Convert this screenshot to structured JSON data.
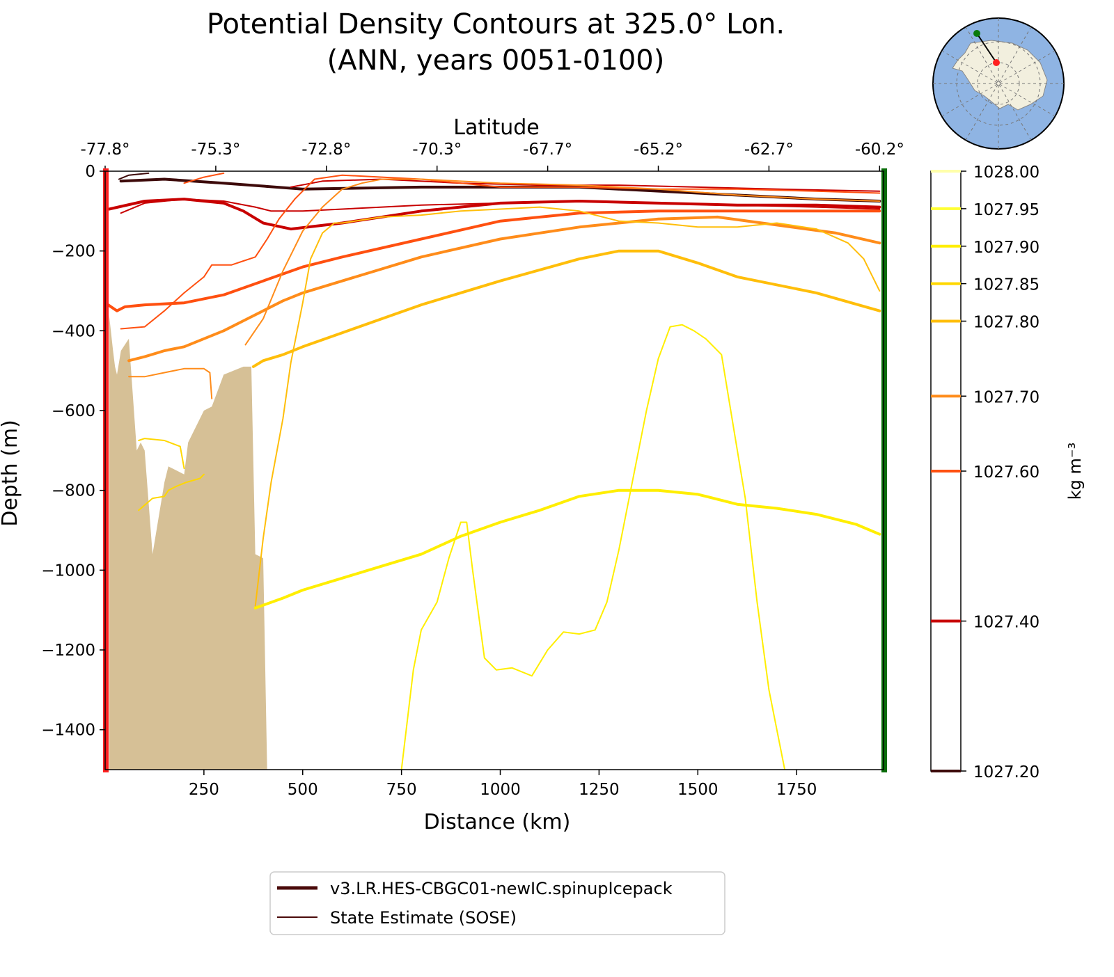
{
  "chart_data": {
    "type": "line",
    "title": [
      "Potential Density Contours at 325.0° Lon.",
      "(ANN, years 0051-0100)"
    ],
    "xlabel": "Distance (km)",
    "ylabel": "Depth (m)",
    "top_xlabel": "Latitude",
    "xlim": [
      0,
      1970
    ],
    "ylim": [
      -1500,
      0
    ],
    "x_ticks": [
      250,
      500,
      750,
      1000,
      1250,
      1500,
      1750
    ],
    "x_tick_labels": [
      "250",
      "500",
      "750",
      "1000",
      "1250",
      "1500",
      "1750"
    ],
    "y_ticks": [
      0,
      -200,
      -400,
      -600,
      -800,
      -1000,
      -1200,
      -1400
    ],
    "y_tick_labels": [
      "0",
      "−200",
      "−400",
      "−600",
      "−800",
      "−1000",
      "−1200",
      "−1400"
    ],
    "top_ticks": [
      0,
      280,
      560,
      840,
      1120,
      1400,
      1680,
      1960
    ],
    "top_tick_labels": [
      "-77.8°",
      "-75.3°",
      "-72.8°",
      "-70.3°",
      "-67.7°",
      "-65.2°",
      "-62.7°",
      "-60.2°"
    ],
    "colorbar": {
      "label": "kg m⁻³",
      "levels": [
        {
          "value": 1027.2,
          "label": "1027.20",
          "color": "#3d0a0a"
        },
        {
          "value": 1027.4,
          "label": "1027.40",
          "color": "#c80000"
        },
        {
          "value": 1027.6,
          "label": "1027.60",
          "color": "#ff5010"
        },
        {
          "value": 1027.7,
          "label": "1027.70",
          "color": "#ff8c1a"
        },
        {
          "value": 1027.8,
          "label": "1027.80",
          "color": "#ffbe0a"
        },
        {
          "value": 1027.85,
          "label": "1027.85",
          "color": "#ffd700"
        },
        {
          "value": 1027.9,
          "label": "1027.90",
          "color": "#ffee00"
        },
        {
          "value": 1027.95,
          "label": "1027.95",
          "color": "#ffff33"
        },
        {
          "value": 1028.0,
          "label": "1028.00",
          "color": "#ffffaa"
        }
      ]
    },
    "series": [
      {
        "level": 1027.2,
        "source": "model",
        "x": [
          40,
          150,
          300,
          500,
          800,
          1200,
          1500,
          1800,
          1960
        ],
        "y": [
          -25,
          -20,
          -30,
          -45,
          -40,
          -40,
          -55,
          -70,
          -75
        ]
      },
      {
        "level": 1027.2,
        "source": "sose",
        "x": [
          35,
          60,
          110
        ],
        "y": [
          -20,
          -10,
          -5
        ]
      },
      {
        "level": 1027.4,
        "source": "model",
        "x": [
          10,
          100,
          200,
          300,
          350,
          400,
          470,
          600,
          800,
          1000,
          1200,
          1400,
          1600,
          1800,
          1960
        ],
        "y": [
          -95,
          -75,
          -70,
          -80,
          -100,
          -130,
          -145,
          -130,
          -100,
          -80,
          -75,
          -80,
          -85,
          -85,
          -90
        ]
      },
      {
        "level": 1027.4,
        "source": "sose",
        "x": [
          40,
          100,
          200,
          300,
          380,
          420,
          500,
          600,
          700,
          800,
          1000,
          1200,
          1400,
          1600,
          1800,
          1960
        ],
        "y": [
          -105,
          -80,
          -70,
          -75,
          -90,
          -100,
          -100,
          -95,
          -90,
          -85,
          -80,
          -75,
          -80,
          -85,
          -90,
          -95
        ]
      },
      {
        "level": 1027.4,
        "source": "sose",
        "x": [
          470,
          550,
          700,
          900,
          1100,
          1300,
          1500,
          1700,
          1960
        ],
        "y": [
          -40,
          -25,
          -20,
          -30,
          -35,
          -35,
          -40,
          -45,
          -50
        ]
      },
      {
        "level": 1027.6,
        "source": "model",
        "x": [
          0,
          30,
          50,
          100,
          200,
          300,
          400,
          500,
          600,
          800,
          1000,
          1200,
          1400,
          1600,
          1800,
          1960
        ],
        "y": [
          -330,
          -350,
          -340,
          -335,
          -330,
          -310,
          -275,
          -240,
          -215,
          -170,
          -125,
          -105,
          -100,
          -100,
          -100,
          -100
        ]
      },
      {
        "level": 1027.6,
        "source": "sose",
        "x": [
          40,
          100,
          150,
          200,
          250,
          270,
          320,
          350,
          380,
          410,
          440,
          480,
          530,
          600,
          800,
          1000,
          1200,
          1400,
          1600,
          1800,
          1960
        ],
        "y": [
          -395,
          -390,
          -350,
          -305,
          -265,
          -235,
          -235,
          -225,
          -215,
          -170,
          -120,
          -70,
          -20,
          -10,
          -20,
          -40,
          -40,
          -45,
          -45,
          -50,
          -55
        ]
      },
      {
        "level": 1027.6,
        "source": "sose",
        "x": [
          200,
          250,
          300
        ],
        "y": [
          -30,
          -15,
          -5
        ]
      },
      {
        "level": 1027.7,
        "source": "model",
        "x": [
          60,
          100,
          150,
          200,
          250,
          300,
          350,
          400,
          450,
          500,
          600,
          700,
          800,
          1000,
          1200,
          1400,
          1550,
          1700,
          1850,
          1960
        ],
        "y": [
          -475,
          -465,
          -450,
          -440,
          -420,
          -400,
          -375,
          -350,
          -325,
          -305,
          -275,
          -245,
          -215,
          -170,
          -140,
          -120,
          -115,
          -135,
          -155,
          -180
        ]
      },
      {
        "level": 1027.7,
        "source": "sose",
        "x": [
          355,
          400,
          450,
          500,
          550,
          600,
          650,
          700,
          800,
          1000,
          1200,
          1400,
          1600,
          1800,
          1960
        ],
        "y": [
          -435,
          -370,
          -250,
          -150,
          -90,
          -45,
          -30,
          -20,
          -20,
          -30,
          -35,
          -45,
          -60,
          -70,
          -75
        ]
      },
      {
        "level": 1027.7,
        "source": "sose",
        "x": [
          60,
          100,
          150,
          200,
          250,
          265,
          270
        ],
        "y": [
          -515,
          -515,
          -505,
          -495,
          -495,
          -505,
          -570
        ]
      },
      {
        "level": 1027.8,
        "source": "model",
        "x": [
          375,
          400,
          450,
          500,
          600,
          700,
          800,
          1000,
          1200,
          1300,
          1400,
          1500,
          1600,
          1800,
          1960
        ],
        "y": [
          -490,
          -475,
          -460,
          -440,
          -405,
          -370,
          -335,
          -275,
          -220,
          -200,
          -200,
          -230,
          -265,
          -305,
          -350
        ]
      },
      {
        "level": 1027.8,
        "source": "sose",
        "x": [
          380,
          400,
          420,
          450,
          470,
          500,
          520,
          550,
          580,
          600,
          700,
          800,
          900,
          1000,
          1100,
          1200,
          1300,
          1400,
          1500,
          1600,
          1700,
          1800,
          1880,
          1920,
          1960
        ],
        "y": [
          -1090,
          -920,
          -780,
          -620,
          -480,
          -330,
          -220,
          -155,
          -130,
          -130,
          -115,
          -110,
          -100,
          -95,
          -90,
          -100,
          -125,
          -130,
          -140,
          -140,
          -130,
          -145,
          -180,
          -220,
          -300
        ]
      },
      {
        "level": 1027.85,
        "source": "sose",
        "x": [
          85,
          120,
          150,
          160,
          180,
          205,
          240,
          250
        ],
        "y": [
          -850,
          -820,
          -815,
          -800,
          -790,
          -780,
          -770,
          -760
        ]
      },
      {
        "level": 1027.85,
        "source": "sose",
        "x": [
          85,
          100,
          150,
          190,
          200
        ],
        "y": [
          -675,
          -670,
          -675,
          -690,
          -745
        ]
      },
      {
        "level": 1027.9,
        "source": "model",
        "x": [
          380,
          450,
          500,
          600,
          700,
          800,
          900,
          1000,
          1100,
          1200,
          1300,
          1400,
          1500,
          1600,
          1700,
          1800,
          1900,
          1960
        ],
        "y": [
          -1095,
          -1070,
          -1050,
          -1020,
          -990,
          -960,
          -915,
          -880,
          -850,
          -815,
          -800,
          -800,
          -810,
          -835,
          -845,
          -860,
          -885,
          -910
        ]
      },
      {
        "level": 1027.9,
        "source": "sose",
        "x": [
          750,
          780,
          800,
          840,
          870,
          900,
          915,
          930,
          960,
          990,
          1030,
          1080,
          1120,
          1160,
          1200,
          1240,
          1270,
          1300,
          1330,
          1370,
          1400,
          1430,
          1460,
          1490,
          1520,
          1560,
          1590,
          1620,
          1650,
          1680,
          1720
        ],
        "y": [
          -1500,
          -1250,
          -1150,
          -1080,
          -970,
          -880,
          -880,
          -1000,
          -1220,
          -1250,
          -1245,
          -1265,
          -1200,
          -1155,
          -1160,
          -1150,
          -1080,
          -950,
          -800,
          -600,
          -470,
          -390,
          -385,
          -400,
          -420,
          -460,
          -640,
          -820,
          -1080,
          -1300,
          -1500
        ]
      }
    ],
    "bathymetry": {
      "x": [
        10,
        20,
        25,
        30,
        40,
        60,
        80,
        85,
        90,
        100,
        120,
        150,
        160,
        200,
        210,
        250,
        270,
        300,
        350,
        370,
        380,
        400,
        410
      ],
      "y": [
        -360,
        -450,
        -490,
        -510,
        -450,
        -420,
        -700,
        -690,
        -680,
        -700,
        -960,
        -780,
        -740,
        -760,
        -680,
        -600,
        -590,
        -510,
        -490,
        -490,
        -960,
        -970,
        -1500
      ]
    },
    "legend": {
      "placement": "bottom-center",
      "entries": [
        {
          "label": "v3.LR.HES-CBGC01-newIC.spinupIcepack",
          "style": "thick",
          "color": "#4a0a0a"
        },
        {
          "label": "State Estimate (SOSE)",
          "style": "thin",
          "color": "#4a0a0a"
        }
      ]
    },
    "section_markers": {
      "start_color": "#ff2020",
      "end_color": "#0a6e0a"
    }
  },
  "inset_map": {
    "ocean_color": "#8fb4e3",
    "land_color": "#f2efde",
    "start_marker_color": "#ff2020",
    "end_marker_color": "#0a7a0a"
  }
}
